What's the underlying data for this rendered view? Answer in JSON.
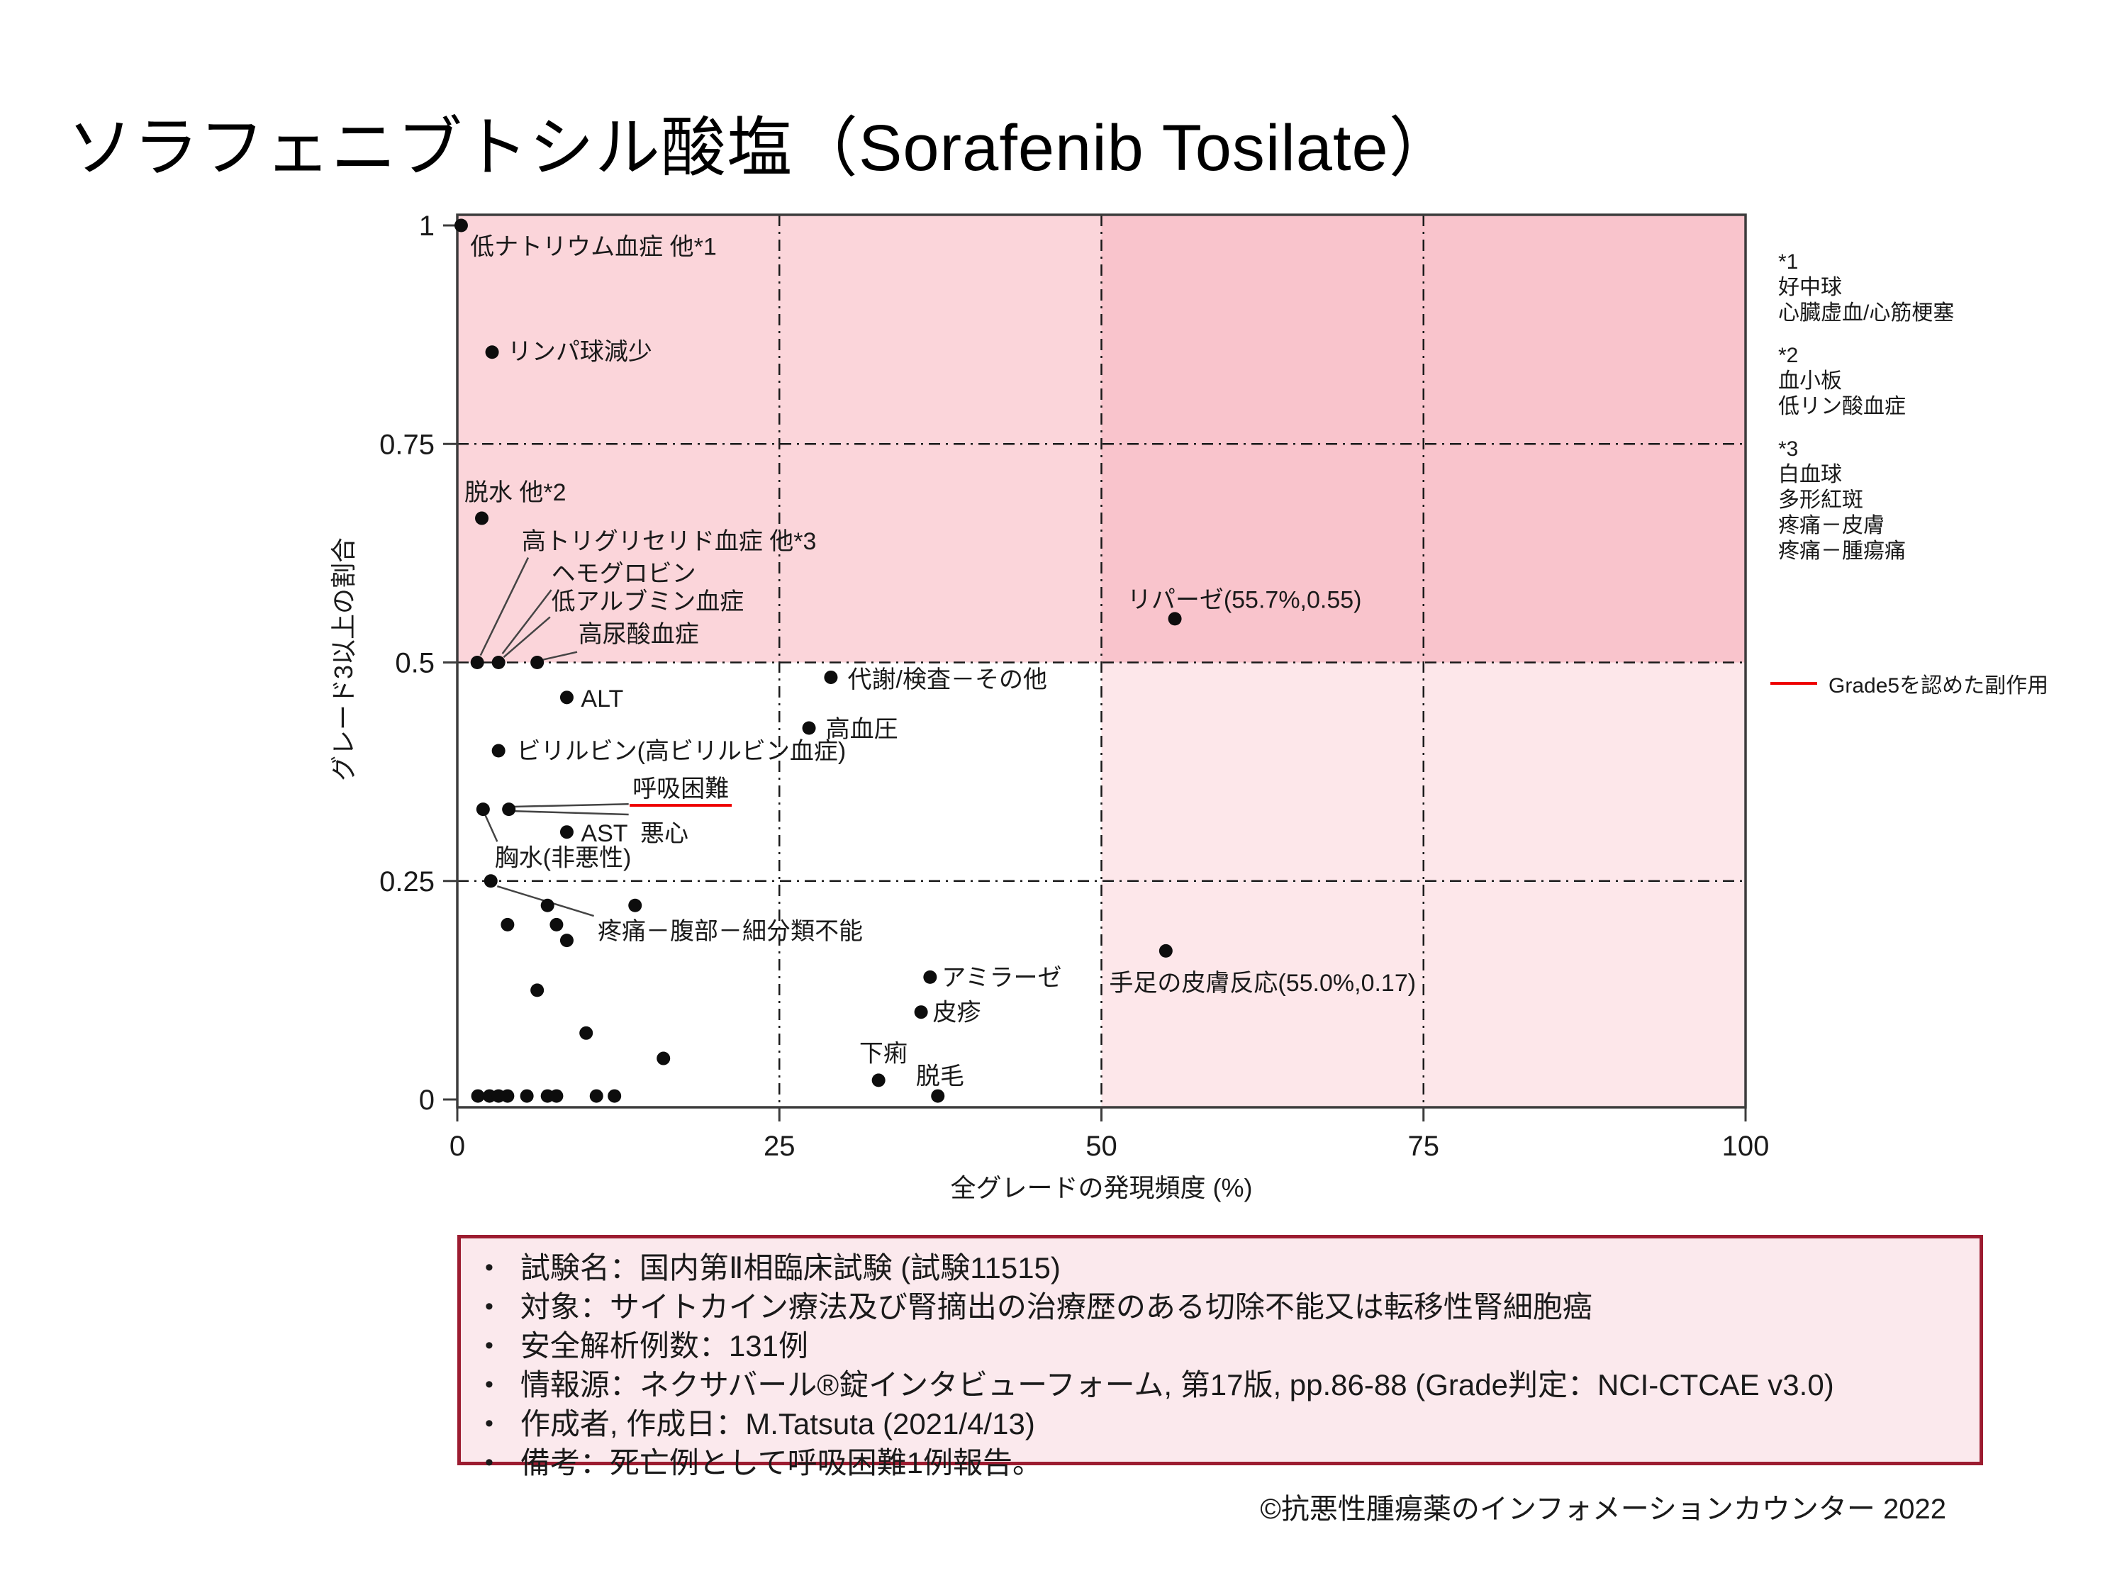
{
  "page": {
    "title": "ソラフェニブトシル酸塩（Sorafenib Tosilate）",
    "copyright": "©抗悪性腫瘍薬のインフォメーションカウンター 2022"
  },
  "chart_data": {
    "type": "scatter",
    "xlabel": "全グレードの発現頻度 (%)",
    "ylabel": "グレード3以上の割合",
    "xlim": [
      0,
      100
    ],
    "ylim": [
      0,
      1
    ],
    "xticks": [
      0,
      25,
      50,
      75,
      100
    ],
    "yticks": [
      0,
      0.25,
      0.5,
      0.75,
      1
    ],
    "grid_x": [
      25,
      50,
      75
    ],
    "grid_y": [
      0.25,
      0.5,
      0.75
    ],
    "quadrant_colors": {
      "top_left": "#fbd5da",
      "top_right": "#f9c4cc",
      "bottom_left": "#ffffff",
      "bottom_right": "#fde7ea"
    },
    "point_color": "#0d0d0d",
    "grade5_color": "#ee0000",
    "points": [
      {
        "name": "hyponatremia-etc",
        "x": 0.3,
        "y": 1.0,
        "label": "低ナトリウム血症 他*1"
      },
      {
        "name": "lymphopenia",
        "x": 2.7,
        "y": 0.855,
        "label": "リンパ球減少"
      },
      {
        "name": "dehydration-etc",
        "x": 1.9,
        "y": 0.665,
        "label": "脱水 他*2"
      },
      {
        "name": "hypertriglyceridemia-etc",
        "x": 1.55,
        "y": 0.5,
        "label": "高トリグリセリド血症 他*3"
      },
      {
        "name": "hemoglobin-hypoalbuminemia",
        "x": 3.2,
        "y": 0.5,
        "label": "ヘモグロビン / 低アルブミン血症"
      },
      {
        "name": "hyperuricemia",
        "x": 6.2,
        "y": 0.5,
        "label": "高尿酸血症"
      },
      {
        "name": "alt",
        "x": 8.5,
        "y": 0.46,
        "label": "ALT"
      },
      {
        "name": "metabolism-lab-other",
        "x": 29.0,
        "y": 0.483,
        "label": "代謝/検査－その他"
      },
      {
        "name": "hypertension",
        "x": 27.3,
        "y": 0.425,
        "label": "高血圧"
      },
      {
        "name": "lipase",
        "x": 55.7,
        "y": 0.55,
        "label": "リパーゼ(55.7%,0.55)"
      },
      {
        "name": "bilirubin",
        "x": 3.2,
        "y": 0.399,
        "label": "ビリルビン(高ビリルビン血症)"
      },
      {
        "name": "pleural-effusion",
        "x": 2.0,
        "y": 0.332,
        "label": "胸水(非悪性)"
      },
      {
        "name": "dyspnea-nausea",
        "x": 4.0,
        "y": 0.332,
        "label": "呼吸困難 / 悪心"
      },
      {
        "name": "ast",
        "x": 8.5,
        "y": 0.306,
        "label": "AST"
      },
      {
        "name": "pain-abdomen",
        "x": 2.6,
        "y": 0.25,
        "label": "疼痛－腹部－細分類不能"
      },
      {
        "name": "amylase",
        "x": 36.7,
        "y": 0.14,
        "label": "アミラーゼ"
      },
      {
        "name": "rash",
        "x": 36.0,
        "y": 0.1,
        "label": "皮疹"
      },
      {
        "name": "hand-foot-skin-reaction",
        "x": 55.0,
        "y": 0.17,
        "label": "手足の皮膚反応(55.0%,0.17)"
      },
      {
        "name": "diarrhea",
        "x": 32.7,
        "y": 0.022,
        "label": "下痢"
      },
      {
        "name": "alopecia",
        "x": 37.3,
        "y": 0.004,
        "label": "脱毛"
      },
      {
        "name": "unlabeled",
        "x": 7.0,
        "y": 0.222
      },
      {
        "name": "unlabeled",
        "x": 13.8,
        "y": 0.222
      },
      {
        "name": "unlabeled",
        "x": 3.9,
        "y": 0.2
      },
      {
        "name": "unlabeled",
        "x": 7.7,
        "y": 0.2
      },
      {
        "name": "unlabeled",
        "x": 8.5,
        "y": 0.182
      },
      {
        "name": "unlabeled",
        "x": 6.2,
        "y": 0.125
      },
      {
        "name": "unlabeled",
        "x": 10.0,
        "y": 0.076
      },
      {
        "name": "unlabeled",
        "x": 16.0,
        "y": 0.047
      },
      {
        "name": "unlabeled",
        "x": 1.6,
        "y": 0.004
      },
      {
        "name": "unlabeled",
        "x": 2.5,
        "y": 0.004
      },
      {
        "name": "unlabeled",
        "x": 3.2,
        "y": 0.004
      },
      {
        "name": "unlabeled",
        "x": 3.9,
        "y": 0.004
      },
      {
        "name": "unlabeled",
        "x": 5.4,
        "y": 0.004
      },
      {
        "name": "unlabeled",
        "x": 7.0,
        "y": 0.004
      },
      {
        "name": "unlabeled",
        "x": 7.7,
        "y": 0.004
      },
      {
        "name": "unlabeled",
        "x": 10.8,
        "y": 0.004
      },
      {
        "name": "unlabeled",
        "x": 12.2,
        "y": 0.004
      }
    ],
    "annotations": [
      {
        "text": "低ナトリウム血症 他*1",
        "x": 1.0,
        "y": 0.976
      },
      {
        "text": "リンパ球減少",
        "x": 3.9,
        "y": 0.856
      },
      {
        "text": "脱水 他*2",
        "x": 0.55,
        "y": 0.695
      },
      {
        "text": "高トリグリセリド血症 他*3",
        "x": 5.0,
        "y": 0.639
      },
      {
        "text": "ヘモグロビン",
        "x": 7.3,
        "y": 0.602
      },
      {
        "text": "低アルブミン血症",
        "x": 7.3,
        "y": 0.57
      },
      {
        "text": "高尿酸血症",
        "x": 9.4,
        "y": 0.533
      },
      {
        "text": "ALT",
        "x": 9.6,
        "y": 0.459
      },
      {
        "text": "代謝/検査－その他",
        "x": 30.3,
        "y": 0.481
      },
      {
        "text": "高血圧",
        "x": 28.6,
        "y": 0.424
      },
      {
        "text": "リパーゼ(55.7%,0.55)",
        "x": 52.0,
        "y": 0.572
      },
      {
        "text": "ビリルビン(高ビリルビン血症)",
        "x": 4.6,
        "y": 0.399
      },
      {
        "text": "呼吸困難",
        "x": 13.6,
        "y": 0.356,
        "underline": true
      },
      {
        "text": "悪心",
        "x": 14.2,
        "y": 0.305
      },
      {
        "text": "AST",
        "x": 9.6,
        "y": 0.305
      },
      {
        "text": "胸水(非悪性)",
        "x": 2.9,
        "y": 0.277
      },
      {
        "text": "疼痛－腹部－細分類不能",
        "x": 10.9,
        "y": 0.193
      },
      {
        "text": "アミラーゼ",
        "x": 37.6,
        "y": 0.14
      },
      {
        "text": "皮疹",
        "x": 36.9,
        "y": 0.1
      },
      {
        "text": "手足の皮膚反応(55.0%,0.17)",
        "x": 50.6,
        "y": 0.134
      },
      {
        "text": "下痢",
        "x": 31.2,
        "y": 0.053
      },
      {
        "text": "脱毛",
        "x": 35.6,
        "y": 0.027
      }
    ],
    "leader_lines": [
      [
        5.5,
        0.62,
        1.8,
        0.508
      ],
      [
        7.3,
        0.583,
        3.5,
        0.51
      ],
      [
        7.2,
        0.552,
        3.6,
        0.506
      ],
      [
        9.3,
        0.512,
        6.6,
        0.503
      ],
      [
        13.3,
        0.338,
        4.35,
        0.335
      ],
      [
        13.3,
        0.326,
        4.3,
        0.33
      ],
      [
        2.15,
        0.326,
        3.1,
        0.295
      ],
      [
        3.1,
        0.244,
        10.6,
        0.21
      ]
    ]
  },
  "side_legend": {
    "groups": [
      {
        "title": "*1",
        "items": [
          "好中球",
          "心臓虚血/心筋梗塞"
        ]
      },
      {
        "title": "*2",
        "items": [
          "血小板",
          "低リン酸血症"
        ]
      },
      {
        "title": "*3",
        "items": [
          "白血球",
          "多形紅斑",
          "疼痛－皮膚",
          "疼痛－腫瘍痛"
        ]
      }
    ],
    "grade5_label": "Grade5を認めた副作用",
    "grade5_color": "#ee0000"
  },
  "info_box": {
    "items": [
      "試験名：国内第Ⅱ相臨床試験 (試験11515)",
      "対象：サイトカイン療法及び腎摘出の治療歴のある切除不能又は転移性腎細胞癌",
      "安全解析例数：131例",
      "情報源：ネクサバール®錠インタビューフォーム, 第17版, pp.86-88 (Grade判定：NCI-CTCAE v3.0)",
      "作成者, 作成日：M.Tatsuta (2021/4/13)",
      "備考：死亡例として呼吸困難1例報告。"
    ]
  }
}
